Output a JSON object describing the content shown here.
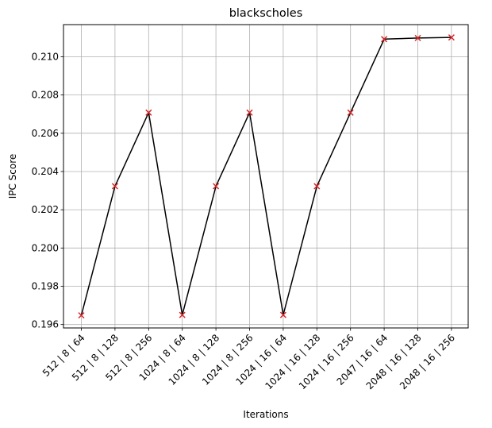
{
  "chart_data": {
    "type": "line",
    "title": "blackscholes",
    "xlabel": "Iterations",
    "ylabel": "IPC Score",
    "categories": [
      "512 | 8 | 64",
      "512 | 8 | 128",
      "512 | 8 | 256",
      "1024 | 8 | 64",
      "1024 | 8 | 128",
      "1024 | 8 | 256",
      "1024 | 16 | 64",
      "1024 | 16 | 128",
      "1024 | 16 | 256",
      "2047 | 16 | 64",
      "2048 | 16 | 128",
      "2048 | 16 | 256"
    ],
    "series": [
      {
        "values": [
          0.19648,
          0.20323,
          0.20708,
          0.1965,
          0.20323,
          0.20708,
          0.1965,
          0.20323,
          0.20708,
          0.21092,
          0.21098,
          0.21101
        ],
        "line_color": "#000000",
        "marker": "x",
        "marker_color": "#d62728"
      }
    ],
    "yticks": [
      0.196,
      0.198,
      0.2,
      0.202,
      0.204,
      0.206,
      0.208,
      0.21
    ],
    "ytick_labels": [
      "0.196",
      "0.198",
      "0.200",
      "0.202",
      "0.204",
      "0.206",
      "0.208",
      "0.210"
    ],
    "ylim": [
      0.19582,
      0.21168
    ],
    "grid": true
  }
}
